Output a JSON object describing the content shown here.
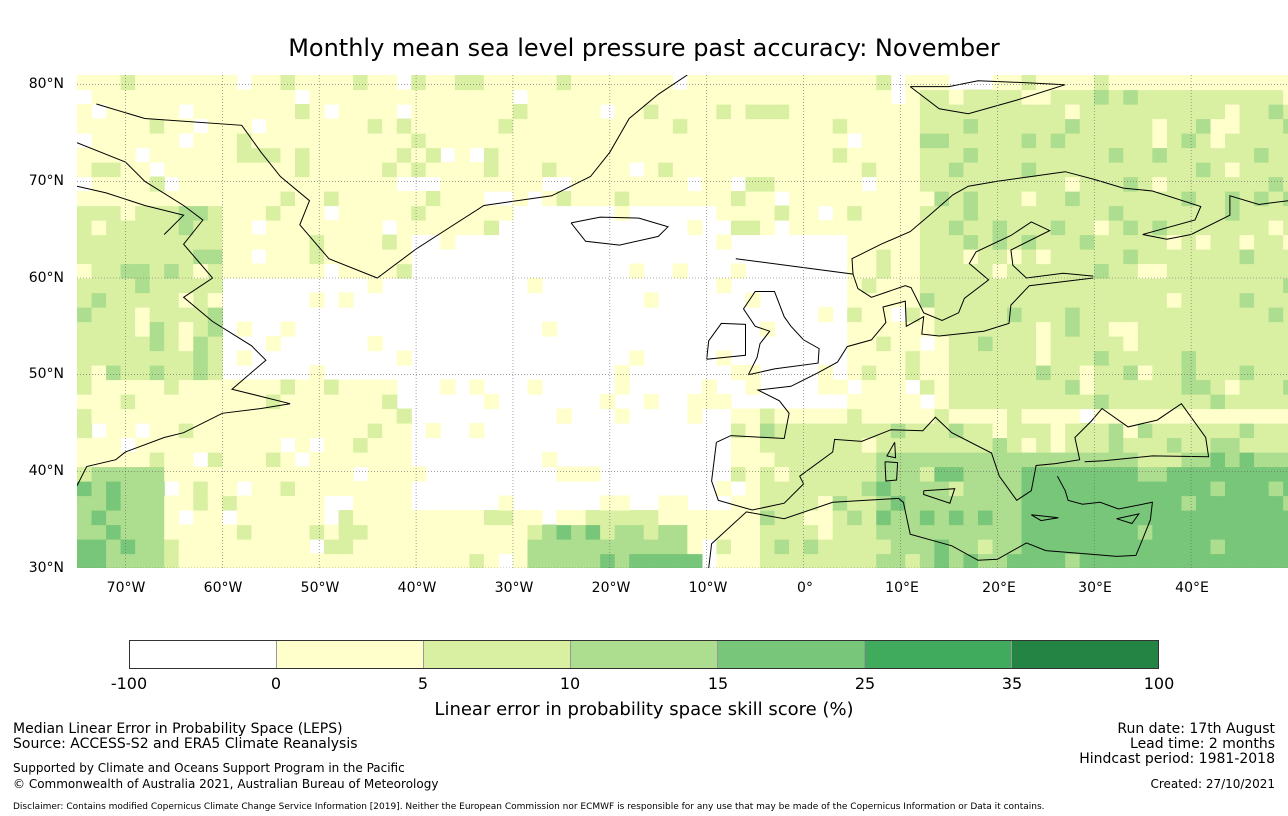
{
  "title": "Monthly mean sea level pressure past accuracy: November",
  "map": {
    "lat_labels": [
      "80°N",
      "70°N",
      "60°N",
      "50°N",
      "40°N",
      "30°N"
    ],
    "lon_labels": [
      "70°W",
      "60°W",
      "50°W",
      "40°W",
      "30°W",
      "20°W",
      "10°W",
      "0°",
      "10°E",
      "20°E",
      "30°E",
      "40°E"
    ],
    "lat_range": [
      30,
      81
    ],
    "lon_range": [
      -75,
      50
    ],
    "palette": [
      "#ffffff",
      "#ffffcc",
      "#d9f0a3",
      "#addd8e",
      "#78c679",
      "#41ab5d",
      "#238443"
    ]
  },
  "colorbar": {
    "ticks": [
      "-100",
      "0",
      "5",
      "10",
      "15",
      "25",
      "35",
      "100"
    ],
    "colors": [
      "#ffffff",
      "#ffffcc",
      "#d9f0a3",
      "#addd8e",
      "#78c679",
      "#41ab5d",
      "#238443"
    ],
    "label": "Linear error in probability space skill score (%)"
  },
  "footer": {
    "left1": "Median Linear Error in Probability Space (LEPS)",
    "left2": "Source: ACCESS-S2 and ERA5 Climate Reanalysis",
    "left3": "Supported by Climate and Oceans Support Program in the Pacific",
    "left4": "© Commonwealth of Australia 2021, Australian Bureau of Meteorology",
    "right1": "Run date: 17th August",
    "right2": "Lead time: 2 months",
    "right3": "Hindcast period: 1981-2018",
    "right4": "Created: 27/10/2021",
    "disclaimer": "Disclaimer: Contains modified Copernicus Climate Change Service Information [2019]. Neither the European Commission nor ECMWF is responsible for any use that may be made of the Copernicus Information or Data it contains."
  }
}
